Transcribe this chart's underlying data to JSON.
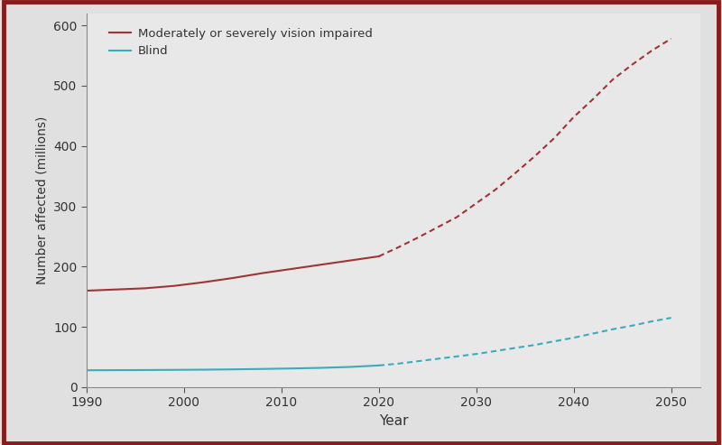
{
  "title": "",
  "xlabel": "Year",
  "ylabel": "Number affected (millions)",
  "background_color": "#e0e0e0",
  "plot_bg_color": "#e8e8e8",
  "border_color": "#8b1a1a",
  "ylim": [
    0,
    620
  ],
  "yticks": [
    0,
    100,
    200,
    300,
    400,
    500,
    600
  ],
  "xlim": [
    1990,
    2053
  ],
  "xticks": [
    1990,
    2000,
    2010,
    2020,
    2030,
    2040,
    2050
  ],
  "vision_impaired": {
    "label": "Moderately or severely vision impaired",
    "color": "#a03535",
    "solid_years": [
      1990,
      1993,
      1996,
      1999,
      2002,
      2005,
      2008,
      2011,
      2014,
      2017,
      2020
    ],
    "solid_values": [
      160,
      162,
      164,
      168,
      174,
      181,
      189,
      196,
      203,
      210,
      217
    ],
    "dashed_years": [
      2020,
      2022,
      2024,
      2026,
      2028,
      2030,
      2032,
      2034,
      2036,
      2038,
      2040,
      2042,
      2044,
      2046,
      2048,
      2050
    ],
    "dashed_values": [
      217,
      232,
      248,
      265,
      282,
      305,
      328,
      355,
      383,
      413,
      448,
      478,
      510,
      535,
      558,
      578
    ]
  },
  "blind": {
    "label": "Blind",
    "color": "#3aacba",
    "solid_years": [
      1990,
      1993,
      1996,
      1999,
      2002,
      2005,
      2008,
      2011,
      2014,
      2017,
      2020
    ],
    "solid_values": [
      28,
      28.2,
      28.4,
      28.7,
      29.0,
      29.5,
      30.2,
      31.0,
      32.0,
      33.5,
      36
    ],
    "dashed_years": [
      2020,
      2022,
      2024,
      2026,
      2028,
      2030,
      2032,
      2034,
      2036,
      2038,
      2040,
      2042,
      2044,
      2046,
      2048,
      2050
    ],
    "dashed_values": [
      36,
      39,
      43,
      47,
      51,
      55,
      60,
      65,
      70,
      76,
      82,
      89,
      96,
      102,
      109,
      115
    ]
  }
}
